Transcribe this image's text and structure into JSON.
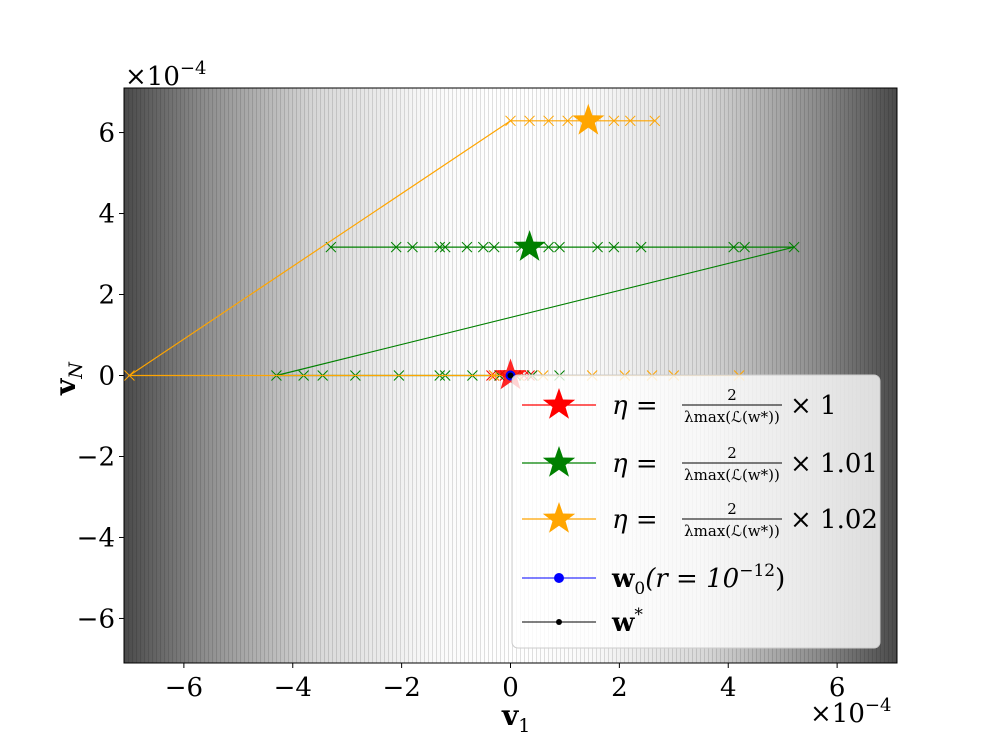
{
  "chart_data": {
    "type": "line",
    "xlim": [
      -7.1,
      7.1
    ],
    "ylim": [
      -7.1,
      7.1
    ],
    "xticks": [
      {
        "value": -6,
        "label": "−6"
      },
      {
        "value": -4,
        "label": "−4"
      },
      {
        "value": -2,
        "label": "−2"
      },
      0,
      2,
      4,
      6
    ],
    "yticks": [
      {
        "value": -6,
        "label": "−6"
      },
      {
        "value": -4,
        "label": "−4"
      },
      {
        "value": -2,
        "label": "−2"
      },
      0,
      2,
      4,
      6
    ],
    "offset_label": {
      "base": "×10",
      "exponent": "−4"
    },
    "x_label": {
      "text": "v",
      "sub": "1"
    },
    "y_label": {
      "text": "v",
      "sub": "N"
    },
    "series": [
      {
        "name": {
          "prefix": "η =",
          "numerator": "2",
          "denominator": "λmax(ℒ(w*))",
          "suffix": "× 1"
        },
        "color": "#ff0000",
        "x": [
          -0.1,
          0.15,
          -0.2,
          0.25,
          -0.3,
          0.35,
          -0.35,
          0.4
        ],
        "y": [
          0,
          0,
          0,
          0,
          0,
          0,
          0,
          0
        ],
        "star": [
          0,
          0
        ]
      },
      {
        "name": {
          "prefix": "η =",
          "numerator": "2",
          "denominator": "λmax(ℒ(w*))",
          "suffix": "× 1.01"
        },
        "color": "#008000",
        "x": [
          0.1,
          -0.2,
          0.4,
          -0.7,
          0.9,
          -1.2,
          -1.3,
          -2.05,
          -2.85,
          -3.45,
          -3.8,
          -4.3,
          5.21,
          4.3,
          4.1,
          -3.3,
          2.4,
          1.9,
          -2.1,
          -1.8,
          1.6,
          -1.3,
          -1.2,
          0.9,
          0.7,
          -0.8,
          -0.5,
          0.2,
          -0.3
        ],
        "y": [
          0,
          0,
          0,
          0,
          0,
          0,
          0,
          0,
          0,
          0,
          0,
          0,
          3.17,
          3.17,
          3.17,
          3.17,
          3.17,
          3.17,
          3.17,
          3.17,
          3.17,
          3.17,
          3.17,
          3.17,
          3.17,
          3.17,
          3.17,
          3.17,
          3.17
        ],
        "star": [
          0.35,
          3.17
        ]
      },
      {
        "name": {
          "prefix": "η =",
          "numerator": "2",
          "denominator": "λmax(ℒ(w*))",
          "suffix": "× 1.02"
        },
        "color": "#ffa500",
        "x": [
          0.15,
          -0.3,
          0.6,
          1.5,
          2.1,
          2.6,
          3.0,
          4.2,
          -7.0,
          0,
          0.35,
          0.7,
          1.05,
          1.9,
          2.2,
          2.65
        ],
        "y": [
          0,
          0,
          0,
          0,
          0,
          0,
          0,
          0,
          0,
          6.29,
          6.29,
          6.29,
          6.29,
          6.29,
          6.29,
          6.29
        ],
        "star": [
          1.43,
          6.29
        ]
      }
    ],
    "points": [
      {
        "name": {
          "text": "w",
          "sub": "0",
          "mid": "(r = 10",
          "sup": "−12",
          "end": ")"
        },
        "color": "#0000ff",
        "x": 0,
        "y": 0
      },
      {
        "name": {
          "text": "w",
          "sup": "*"
        },
        "color": "#000000",
        "x": 0,
        "y": 0
      }
    ]
  }
}
